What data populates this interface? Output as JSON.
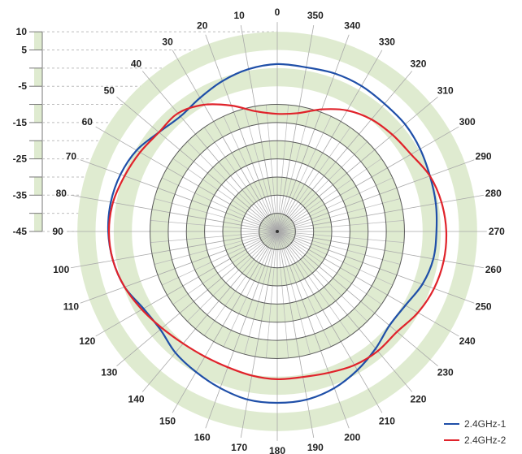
{
  "chart_data": {
    "type": "polar-line",
    "title": "",
    "angle_unit": "degrees",
    "angle_direction": "counter-clockwise from top",
    "angle_ticks": [
      0,
      10,
      20,
      30,
      40,
      50,
      60,
      70,
      80,
      90,
      100,
      110,
      120,
      130,
      140,
      150,
      160,
      170,
      180,
      190,
      200,
      210,
      220,
      230,
      240,
      250,
      260,
      270,
      280,
      290,
      300,
      310,
      320,
      330,
      340,
      350
    ],
    "radial_axis": {
      "unit": "dB",
      "range": [
        -45,
        10
      ],
      "tick_labels": [
        "10",
        "5",
        "-5",
        "-15",
        "-25",
        "-35",
        "-45"
      ],
      "tick_values": [
        10,
        5,
        -5,
        -15,
        -25,
        -35,
        -45
      ],
      "band_step": 5
    },
    "angles": [
      0,
      10,
      20,
      30,
      40,
      50,
      60,
      70,
      80,
      90,
      100,
      110,
      120,
      130,
      140,
      150,
      160,
      170,
      180,
      190,
      200,
      210,
      220,
      230,
      240,
      250,
      260,
      270,
      280,
      290,
      300,
      310,
      320,
      330,
      340,
      350
    ],
    "series": [
      {
        "name": "2.4GHz-1",
        "color": "#1f4fa8",
        "values": [
          1.1,
          0.4,
          -0.9,
          -2.5,
          -3.6,
          -2.5,
          -0.3,
          0.9,
          1.5,
          1.5,
          0.9,
          -0.3,
          -2.5,
          -3.0,
          -1.4,
          -0.3,
          0.9,
          2.0,
          2.2,
          2.0,
          0.9,
          -0.9,
          -2.9,
          -4.7,
          -4.3,
          -2.5,
          -1.4,
          -1.2,
          -0.7,
          -0.3,
          0.4,
          0.9,
          0.9,
          1.3,
          1.3,
          0.9
        ]
      },
      {
        "name": "2.4GHz-2",
        "color": "#e0232b",
        "values": [
          -12.6,
          -11.4,
          -8.1,
          -4.7,
          -2.5,
          -2.5,
          -1.4,
          -0.3,
          0.9,
          1.3,
          0.9,
          -0.3,
          -2.0,
          -3.6,
          -4.7,
          -5.2,
          -5.2,
          -4.7,
          -4.3,
          -4.3,
          -3.6,
          -2.5,
          -2.0,
          -2.0,
          -0.3,
          0.9,
          1.5,
          1.5,
          0.9,
          -0.3,
          -2.5,
          -3.6,
          -4.7,
          -6.5,
          -9.2,
          -11.9
        ]
      }
    ],
    "legend": {
      "position": "bottom-right",
      "entries": [
        "2.4GHz-1",
        "2.4GHz-2"
      ]
    },
    "colors": {
      "band_green": "#dfebd0",
      "grid_dark": "#5a5a5a",
      "grid_light": "#b9b9b9",
      "dashed": "#bdbdbd"
    }
  }
}
